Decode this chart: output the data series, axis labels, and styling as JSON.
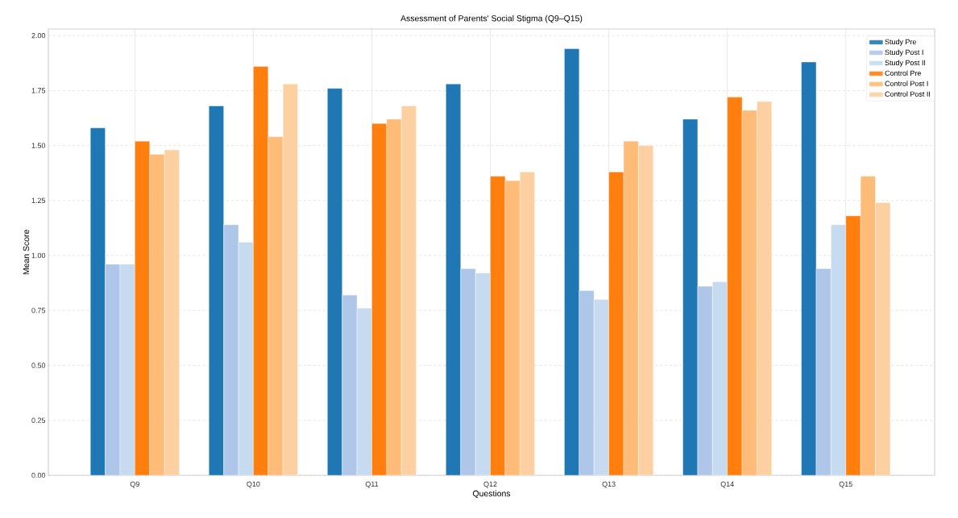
{
  "chart_data": {
    "type": "bar",
    "title": "Assessment of Parents' Social Stigma (Q9–Q15)",
    "xlabel": "Questions",
    "ylabel": "Mean Score",
    "categories": [
      "Q9",
      "Q10",
      "Q11",
      "Q12",
      "Q13",
      "Q14",
      "Q15"
    ],
    "series": [
      {
        "name": "Study Pre",
        "color": "#1f77b4",
        "values": [
          1.58,
          1.68,
          1.76,
          1.78,
          1.94,
          1.62,
          1.88
        ]
      },
      {
        "name": "Study Post I",
        "color": "#aec7e8",
        "values": [
          0.96,
          1.14,
          0.82,
          0.94,
          0.84,
          0.86,
          0.94
        ]
      },
      {
        "name": "Study Post II",
        "color": "#c6dbef",
        "values": [
          0.96,
          1.06,
          0.76,
          0.92,
          0.8,
          0.88,
          1.14
        ]
      },
      {
        "name": "Control Pre",
        "color": "#ff7f0e",
        "values": [
          1.52,
          1.86,
          1.6,
          1.36,
          1.38,
          1.72,
          1.18
        ]
      },
      {
        "name": "Control Post I",
        "color": "#ffbb78",
        "values": [
          1.46,
          1.54,
          1.62,
          1.34,
          1.52,
          1.66,
          1.36
        ]
      },
      {
        "name": "Control Post II",
        "color": "#fdd0a2",
        "values": [
          1.48,
          1.78,
          1.68,
          1.38,
          1.5,
          1.7,
          1.24
        ]
      }
    ],
    "ylim": [
      0,
      2.03
    ],
    "yticks": [
      {
        "value": 0,
        "label": "0.00"
      },
      {
        "value": 0.25,
        "label": "0.25"
      },
      {
        "value": 0.5,
        "label": "0.50"
      },
      {
        "value": 0.75,
        "label": "0.75"
      },
      {
        "value": 1,
        "label": "1.00"
      },
      {
        "value": 1.25,
        "label": "1.25"
      },
      {
        "value": 1.5,
        "label": "1.50"
      },
      {
        "value": 1.75,
        "label": "1.75"
      },
      {
        "value": 2,
        "label": "2.00"
      }
    ],
    "grid": true,
    "legend": "top right"
  }
}
